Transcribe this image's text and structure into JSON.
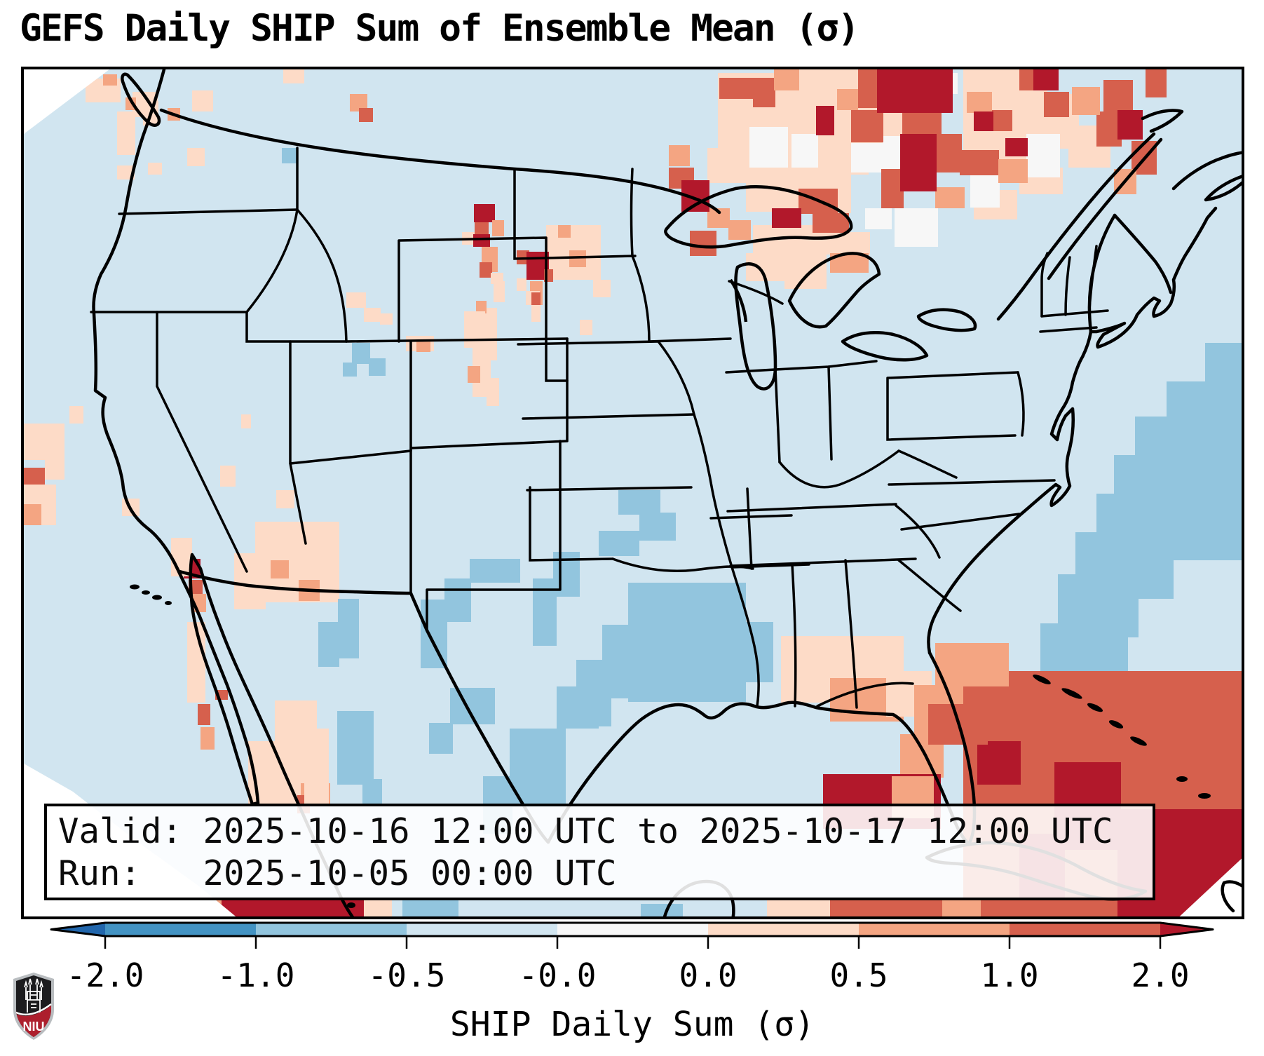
{
  "title": "GEFS Daily SHIP Sum of Ensemble Mean (σ)",
  "info_box": {
    "valid_line": "Valid: 2025-10-16 12:00 UTC to 2025-10-17 12:00 UTC",
    "run_line": "Run:   2025-10-05 00:00 UTC"
  },
  "colorbar": {
    "label": "SHIP Daily Sum (σ)",
    "tick_labels": [
      "-2.0",
      "-1.0",
      "-0.5",
      "-0.0",
      "0.0",
      "0.5",
      "1.0",
      "2.0"
    ],
    "boundaries": [
      -2.0,
      -1.0,
      -0.5,
      -0.0,
      0.0,
      0.5,
      1.0,
      2.0
    ],
    "segment_colors": [
      "#4393c3",
      "#92c5de",
      "#d1e5f0",
      "#f7f7f7",
      "#fddbc7",
      "#f4a582",
      "#d6604d"
    ],
    "under_color": "#2166ac",
    "over_color": "#b2182b"
  },
  "logo": {
    "text": "NIU",
    "silver": "#b9bdc0",
    "black": "#1c1c1e",
    "red": "#ad1f2d"
  },
  "chart_data": {
    "type": "heatmap",
    "title": "GEFS Daily SHIP Sum of Ensemble Mean (σ)",
    "colorbar_label": "SHIP Daily Sum (σ)",
    "scale_boundaries": [
      -2.0,
      -1.0,
      -0.5,
      -0.0,
      0.0,
      0.5,
      1.0,
      2.0
    ],
    "scale_colors": [
      "#2166ac",
      "#4393c3",
      "#92c5de",
      "#d1e5f0",
      "#f7f7f7",
      "#fddbc7",
      "#f4a582",
      "#d6604d",
      "#b2182b"
    ],
    "valid_period": "2025-10-16 12:00 UTC to 2025-10-17 12:00 UTC",
    "run_time": "2025-10-05 00:00 UTC",
    "notes": "Gridded sigma anomalies over CONUS: strong positive (red) maxima over Ontario/upper Great Lakes, eastern Montana/Dakotas, Caribbean and southern Mexico; weak negative (blue) over Gulf of Mexico, Texas and western Atlantic."
  },
  "map": {
    "background": "#d1e5f0",
    "border_color": "#000000",
    "palette": {
      "P": "#fddbc7",
      "O": "#f4a582",
      "R": "#d6604d",
      "K": "#b2182b",
      "W": "#f7f7f7",
      "B": "#92c5de"
    },
    "patches": [
      [
        "P",
        990,
        5,
        215,
        145
      ],
      [
        "P",
        1105,
        0,
        100,
        60
      ],
      [
        "P",
        1205,
        55,
        65,
        65
      ],
      [
        "P",
        975,
        112,
        65,
        50
      ],
      [
        "P",
        1085,
        140,
        95,
        65
      ],
      [
        "P",
        1030,
        145,
        62,
        58
      ],
      [
        "P",
        1355,
        5,
        65,
        58
      ],
      [
        "P",
        1420,
        35,
        85,
        78
      ],
      [
        "P",
        1390,
        95,
        58,
        42
      ],
      [
        "P",
        1355,
        172,
        62,
        42
      ],
      [
        "P",
        1420,
        140,
        62,
        38
      ],
      [
        "P",
        1040,
        222,
        105,
        48
      ],
      [
        "P",
        1145,
        232,
        62,
        32
      ],
      [
        "P",
        1085,
        268,
        60,
        45
      ],
      [
        "P",
        1030,
        262,
        55,
        40
      ],
      [
        "P",
        1340,
        0,
        120,
        135
      ],
      [
        "P",
        1490,
        80,
        60,
        60
      ],
      [
        "W",
        1225,
        95,
        30,
        52
      ],
      [
        "W",
        1180,
        105,
        48,
        42
      ],
      [
        "W",
        1300,
        5,
        32,
        30
      ],
      [
        "W",
        1095,
        92,
        38,
        48
      ],
      [
        "W",
        1200,
        198,
        38,
        30
      ],
      [
        "W",
        1350,
        142,
        42,
        55
      ],
      [
        "W",
        1242,
        198,
        62,
        55
      ],
      [
        "W",
        1035,
        82,
        55,
        58
      ],
      [
        "W",
        1430,
        92,
        48,
        62
      ],
      [
        "R",
        1190,
        0,
        30,
        55
      ],
      [
        "R",
        1253,
        58,
        56,
        38
      ],
      [
        "R",
        1302,
        92,
        36,
        55
      ],
      [
        "R",
        1335,
        115,
        56,
        36
      ],
      [
        "R",
        1223,
        142,
        32,
        56
      ],
      [
        "R",
        1040,
        12,
        32,
        42
      ],
      [
        "R",
        992,
        12,
        56,
        30
      ],
      [
        "R",
        920,
        140,
        36,
        30
      ],
      [
        "R",
        1105,
        170,
        56,
        36
      ],
      [
        "R",
        1125,
        205,
        52,
        28
      ],
      [
        "R",
        1180,
        58,
        46,
        46
      ],
      [
        "R",
        1420,
        0,
        32,
        30
      ],
      [
        "R",
        1455,
        32,
        36,
        36
      ],
      [
        "R",
        1380,
        58,
        30,
        30
      ],
      [
        "R",
        1530,
        60,
        36,
        50
      ],
      [
        "R",
        1540,
        15,
        42,
        46
      ],
      [
        "R",
        1580,
        102,
        36,
        48
      ],
      [
        "R",
        1600,
        0,
        30,
        40
      ],
      [
        "R",
        950,
        230,
        38,
        36
      ],
      [
        "O",
        1070,
        0,
        36,
        30
      ],
      [
        "O",
        1160,
        28,
        30,
        30
      ],
      [
        "O",
        1255,
        25,
        46,
        36
      ],
      [
        "O",
        1345,
        32,
        36,
        30
      ],
      [
        "O",
        1390,
        128,
        42,
        34
      ],
      [
        "O",
        1300,
        168,
        42,
        30
      ],
      [
        "O",
        975,
        198,
        32,
        28
      ],
      [
        "O",
        1150,
        262,
        55,
        28
      ],
      [
        "O",
        1005,
        215,
        32,
        28
      ],
      [
        "O",
        1555,
        142,
        32,
        36
      ],
      [
        "O",
        920,
        108,
        30,
        30
      ],
      [
        "O",
        1495,
        25,
        40,
        40
      ],
      [
        "K",
        1217,
        0,
        108,
        62
      ],
      [
        "K",
        1250,
        92,
        52,
        82
      ],
      [
        "K",
        1130,
        52,
        26,
        42
      ],
      [
        "K",
        1400,
        98,
        32,
        26
      ],
      [
        "K",
        1067,
        198,
        42,
        28
      ],
      [
        "K",
        938,
        158,
        40,
        45
      ],
      [
        "K",
        1440,
        0,
        36,
        30
      ],
      [
        "K",
        1560,
        58,
        36,
        42
      ],
      [
        "K",
        1355,
        60,
        28,
        28
      ],
      [
        "P",
        37,
        13,
        45,
        17
      ],
      [
        "P",
        88,
        13,
        50,
        34
      ],
      [
        "O",
        113,
        7,
        20,
        16
      ],
      [
        "P",
        155,
        32,
        36,
        36
      ],
      [
        "O",
        145,
        40,
        15,
        18
      ],
      [
        "P",
        170,
        45,
        22,
        35
      ],
      [
        "P",
        133,
        60,
        26,
        62
      ],
      [
        "P",
        233,
        112,
        25,
        26
      ],
      [
        "P",
        133,
        137,
        25,
        20
      ],
      [
        "P",
        177,
        133,
        20,
        17
      ],
      [
        "O",
        205,
        55,
        18,
        18
      ],
      [
        "P",
        240,
        30,
        30,
        30
      ],
      [
        "P",
        370,
        0,
        30,
        20
      ],
      [
        "B",
        368,
        112,
        22,
        22
      ],
      [
        "O",
        465,
        35,
        25,
        25
      ],
      [
        "R",
        478,
        55,
        20,
        20
      ],
      [
        "K",
        642,
        192,
        30,
        26
      ],
      [
        "R",
        643,
        218,
        20,
        20
      ],
      [
        "O",
        668,
        215,
        17,
        23
      ],
      [
        "P",
        625,
        232,
        18,
        18
      ],
      [
        "K",
        641,
        235,
        24,
        18
      ],
      [
        "O",
        653,
        253,
        23,
        36
      ],
      [
        "R",
        650,
        275,
        18,
        22
      ],
      [
        "P",
        666,
        290,
        18,
        16
      ],
      [
        "P",
        670,
        302,
        16,
        30
      ],
      [
        "P",
        658,
        340,
        17,
        75
      ],
      [
        "O",
        645,
        330,
        15,
        18
      ],
      [
        "P",
        745,
        222,
        78,
        78
      ],
      [
        "O",
        762,
        222,
        18,
        18
      ],
      [
        "O",
        778,
        258,
        24,
        24
      ],
      [
        "R",
        703,
        258,
        18,
        20
      ],
      [
        "K",
        717,
        260,
        32,
        40
      ],
      [
        "R",
        742,
        285,
        13,
        18
      ],
      [
        "O",
        722,
        302,
        18,
        34
      ],
      [
        "P",
        703,
        298,
        14,
        18
      ],
      [
        "P",
        716,
        316,
        20,
        20
      ],
      [
        "R",
        724,
        318,
        13,
        18
      ],
      [
        "P",
        724,
        336,
        13,
        24
      ],
      [
        "P",
        793,
        357,
        18,
        22
      ],
      [
        "P",
        812,
        300,
        25,
        25
      ],
      [
        "P",
        545,
        380,
        40,
        22
      ],
      [
        "O",
        560,
        385,
        20,
        18
      ],
      [
        "P",
        460,
        318,
        28,
        22
      ],
      [
        "P",
        485,
        340,
        24,
        20
      ],
      [
        "P",
        508,
        348,
        18,
        16
      ],
      [
        "B",
        468,
        390,
        26,
        30
      ],
      [
        "B",
        492,
        412,
        24,
        25
      ],
      [
        "B",
        455,
        418,
        20,
        20
      ],
      [
        "P",
        310,
        492,
        14,
        20
      ],
      [
        "P",
        280,
        565,
        22,
        30
      ],
      [
        "P",
        628,
        345,
        30,
        52
      ],
      [
        "P",
        640,
        395,
        26,
        72
      ],
      [
        "O",
        633,
        423,
        18,
        24
      ],
      [
        "P",
        660,
        440,
        18,
        40
      ],
      [
        "P",
        0,
        505,
        58,
        52
      ],
      [
        "R",
        0,
        568,
        30,
        24
      ],
      [
        "P",
        0,
        592,
        46,
        58
      ],
      [
        "P",
        65,
        480,
        20,
        25
      ],
      [
        "P",
        30,
        545,
        28,
        40
      ],
      [
        "O",
        0,
        620,
        25,
        30
      ],
      [
        "P",
        140,
        612,
        25,
        25
      ],
      [
        "P",
        330,
        645,
        120,
        115
      ],
      [
        "O",
        352,
        700,
        26,
        26
      ],
      [
        "O",
        392,
        728,
        30,
        30
      ],
      [
        "P",
        300,
        690,
        45,
        80
      ],
      [
        "P",
        360,
        600,
        26,
        26
      ],
      [
        "K",
        228,
        698,
        24,
        28
      ],
      [
        "R",
        235,
        728,
        20,
        22
      ],
      [
        "P",
        210,
        668,
        30,
        55
      ],
      [
        "O",
        240,
        748,
        20,
        26
      ],
      [
        "P",
        233,
        788,
        26,
        115
      ],
      [
        "R",
        273,
        885,
        18,
        14
      ],
      [
        "R",
        248,
        905,
        18,
        30
      ],
      [
        "O",
        252,
        938,
        20,
        32
      ],
      [
        "P",
        320,
        958,
        95,
        90
      ],
      [
        "O",
        395,
        1018,
        42,
        30
      ],
      [
        "R",
        390,
        1035,
        18,
        26
      ],
      [
        "P",
        358,
        900,
        60,
        58
      ],
      [
        "P",
        400,
        940,
        35,
        110
      ],
      [
        "B",
        848,
        600,
        60,
        35
      ],
      [
        "B",
        878,
        632,
        52,
        40
      ],
      [
        "B",
        820,
        658,
        58,
        36
      ],
      [
        "B",
        755,
        688,
        38,
        64
      ],
      [
        "B",
        726,
        726,
        34,
        96
      ],
      [
        "B",
        636,
        698,
        72,
        34
      ],
      [
        "B",
        600,
        726,
        38,
        62
      ],
      [
        "B",
        566,
        756,
        38,
        98
      ],
      [
        "B",
        448,
        755,
        30,
        85
      ],
      [
        "B",
        420,
        788,
        30,
        64
      ],
      [
        "B",
        862,
        732,
        168,
        170
      ],
      [
        "B",
        1005,
        788,
        64,
        86
      ],
      [
        "B",
        825,
        792,
        38,
        105
      ],
      [
        "B",
        788,
        842,
        50,
        95
      ],
      [
        "B",
        447,
        915,
        52,
        105
      ],
      [
        "B",
        483,
        1012,
        28,
        36
      ],
      [
        "B",
        608,
        882,
        64,
        52
      ],
      [
        "B",
        578,
        932,
        34,
        44
      ],
      [
        "B",
        693,
        940,
        80,
        112
      ],
      [
        "B",
        655,
        1008,
        42,
        82
      ],
      [
        "B",
        760,
        880,
        60,
        60
      ],
      [
        "B",
        1685,
        390,
        60,
        100
      ],
      [
        "B",
        1630,
        445,
        115,
        95
      ],
      [
        "B",
        1585,
        495,
        160,
        95
      ],
      [
        "B",
        1555,
        550,
        190,
        95
      ],
      [
        "B",
        1530,
        605,
        215,
        95
      ],
      [
        "B",
        1500,
        660,
        140,
        95
      ],
      [
        "B",
        1475,
        720,
        115,
        90
      ],
      [
        "B",
        1450,
        790,
        125,
        90
      ],
      [
        "B",
        1430,
        858,
        85,
        85
      ],
      [
        "B",
        1408,
        928,
        75,
        75
      ],
      [
        "B",
        1390,
        990,
        60,
        60
      ],
      [
        "P",
        1080,
        808,
        175,
        95
      ],
      [
        "O",
        1150,
        868,
        105,
        62
      ],
      [
        "P",
        1230,
        858,
        65,
        65
      ],
      [
        "O",
        1270,
        878,
        72,
        72
      ],
      [
        "O",
        1250,
        948,
        62,
        62
      ],
      [
        "R",
        1340,
        858,
        405,
        358
      ],
      [
        "O",
        1300,
        818,
        105,
        62
      ],
      [
        "K",
        1470,
        988,
        95,
        125
      ],
      [
        "K",
        1560,
        1055,
        185,
        161
      ],
      [
        "K",
        1360,
        958,
        62,
        62
      ],
      [
        "K",
        1420,
        1090,
        65,
        95
      ],
      [
        "R",
        1290,
        905,
        85,
        58
      ],
      [
        "K",
        1140,
        1005,
        168,
        78
      ],
      [
        "O",
        1238,
        1008,
        60,
        60
      ],
      [
        "K",
        280,
        1181,
        205,
        35
      ],
      [
        "O",
        252,
        1181,
        30,
        35
      ],
      [
        "P",
        485,
        1181,
        40,
        35
      ],
      [
        "R",
        1150,
        1181,
        160,
        35
      ],
      [
        "O",
        1310,
        1181,
        55,
        35
      ],
      [
        "B",
        540,
        1185,
        80,
        31
      ],
      [
        "B",
        880,
        1190,
        60,
        26
      ],
      [
        "P",
        1060,
        1181,
        90,
        35
      ]
    ]
  }
}
